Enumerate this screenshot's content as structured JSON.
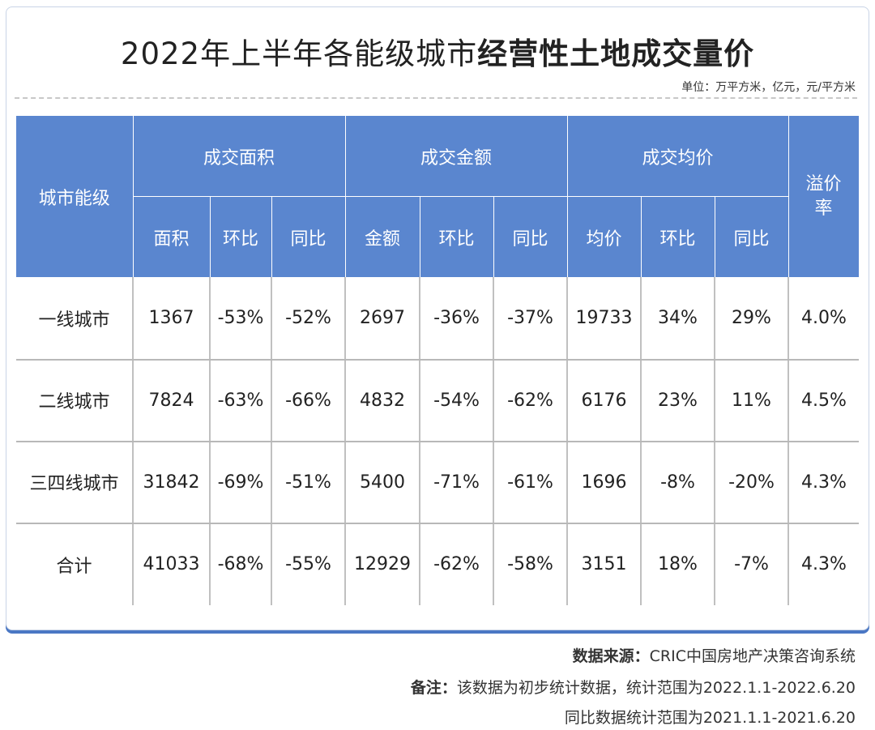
{
  "title": {
    "normal": "2022年上半年各能级城市",
    "bold": "经营性土地成交量价"
  },
  "unit": "单位：万平方米，亿元，元/平方米",
  "colors": {
    "header_bg": "#5a86cf",
    "card_shadow": "#4a77c4"
  },
  "chart_data": {
    "type": "table",
    "title": "2022年上半年各能级城市经营性土地成交量价",
    "header_groups": [
      "城市能级",
      "成交面积",
      "成交金额",
      "成交均价",
      "溢价率"
    ],
    "sub_headers": [
      "面积",
      "环比",
      "同比",
      "金额",
      "环比",
      "同比",
      "均价",
      "环比",
      "同比"
    ],
    "rows": [
      {
        "city": "一线城市",
        "values": [
          "1367",
          "-53%",
          "-52%",
          "2697",
          "-36%",
          "-37%",
          "19733",
          "34%",
          "29%",
          "4.0%"
        ]
      },
      {
        "city": "二线城市",
        "values": [
          "7824",
          "-63%",
          "-66%",
          "4832",
          "-54%",
          "-62%",
          "6176",
          "23%",
          "11%",
          "4.5%"
        ]
      },
      {
        "city": "三四线城市",
        "values": [
          "31842",
          "-69%",
          "-51%",
          "5400",
          "-71%",
          "-61%",
          "1696",
          "-8%",
          "-20%",
          "4.3%"
        ]
      },
      {
        "city": "合计",
        "values": [
          "41033",
          "-68%",
          "-55%",
          "12929",
          "-62%",
          "-58%",
          "3151",
          "18%",
          "-7%",
          "4.3%"
        ]
      }
    ]
  },
  "notes": {
    "source_label": "数据来源：",
    "source_text": "CRIC中国房地产决策咨询系统",
    "remark_label": "备注：",
    "remark_text": "该数据为初步统计数据，统计范围为2022.1.1-2022.6.20",
    "remark_text2": "同比数据统计范围为2021.1.1-2021.6.20"
  }
}
